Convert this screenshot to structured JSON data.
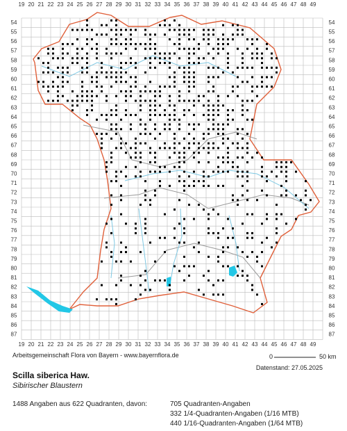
{
  "map": {
    "columns": [
      19,
      20,
      21,
      22,
      23,
      24,
      25,
      26,
      27,
      28,
      29,
      30,
      31,
      32,
      33,
      34,
      35,
      36,
      37,
      38,
      39,
      40,
      41,
      42,
      43,
      44,
      45,
      46,
      47,
      48,
      49
    ],
    "rows": [
      54,
      55,
      56,
      57,
      58,
      59,
      60,
      61,
      62,
      63,
      64,
      65,
      66,
      67,
      68,
      69,
      70,
      71,
      72,
      73,
      74,
      75,
      76,
      77,
      78,
      79,
      80,
      81,
      82,
      83,
      84,
      85,
      86,
      87
    ],
    "credit": "Arbeitsgemeinschaft Flora von Bayern - www.bayernflora.de",
    "scale_start": "0",
    "scale_end": "50 km",
    "date": "Datenstand: 27.05.2025",
    "title": "Scilla siberica Haw.",
    "subtitle": "Sibirischer Blaustern",
    "summary": "1488 Angaben aus 622 Quadranten, davon:",
    "counts": [
      "705 Quadranten-Angaben",
      "332 1/4-Quadranten-Angaben (1/16 MTB)",
      "440 1/16-Quadranten-Angaben (1/64 MTB)"
    ]
  }
}
